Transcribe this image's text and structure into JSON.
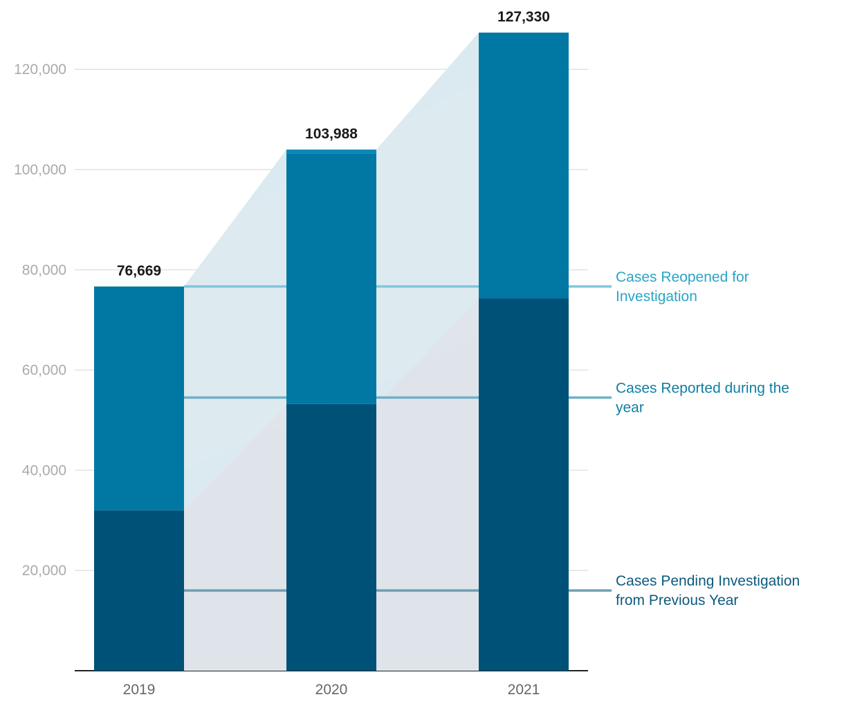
{
  "chart_data": {
    "type": "bar",
    "stacked": true,
    "categories": [
      "2019",
      "2020",
      "2021"
    ],
    "series": [
      {
        "name": "Cases Pending Investigation from Previous Year",
        "values": [
          32000,
          53200,
          74300
        ],
        "color": "#005178"
      },
      {
        "name": "Cases Reported during the year",
        "values": [
          44669,
          50000,
          53030
        ],
        "color": "#0078a3"
      },
      {
        "name": "Cases Reopened for Investigation",
        "values": [
          0,
          788,
          0
        ],
        "color": "#0a88b3"
      }
    ],
    "totals": [
      76669,
      103988,
      127330
    ],
    "total_labels": [
      "76,669",
      "103,988",
      "127,330"
    ],
    "series_labels": [
      {
        "lines": [
          "Cases Reopened for",
          "Investigation"
        ],
        "color": "#2aa5c7",
        "line_color": "#7fc7dd",
        "value": 76669
      },
      {
        "lines": [
          "Cases Reported during the",
          "year"
        ],
        "color": "#0f7fa2",
        "line_color": "#6fb0c8",
        "value": 54500
      },
      {
        "lines": [
          "Cases Pending Investigation",
          "from Previous Year"
        ],
        "color": "#0d5a7e",
        "line_color": "#6f9fb4",
        "value": 16000
      }
    ],
    "y_ticks": [
      20000,
      40000,
      60000,
      80000,
      100000,
      120000
    ],
    "y_tick_labels": [
      "20,000",
      "40,000",
      "60,000",
      "80,000",
      "100,000",
      "120,000"
    ],
    "ylim": [
      0,
      131000
    ],
    "grid": true,
    "title": "",
    "xlabel": "",
    "ylabel": ""
  }
}
